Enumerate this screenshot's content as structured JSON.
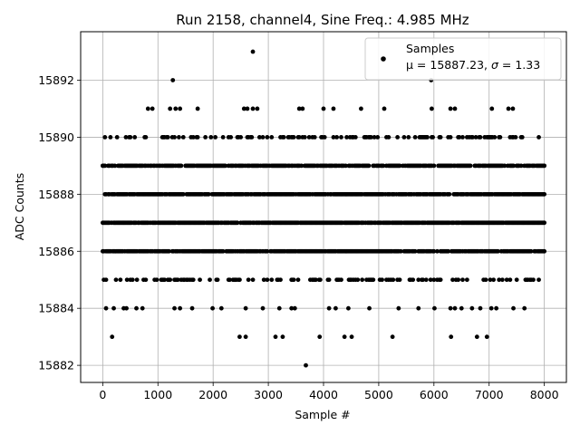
{
  "chart_data": {
    "type": "scatter",
    "title": "Run 2158, channel4, Sine Freq.: 4.985 MHz",
    "xlabel": "Sample #",
    "ylabel": "ADC Counts",
    "xlim": [
      -400,
      8400
    ],
    "ylim": [
      15881.4,
      15893.7
    ],
    "x_ticks": [
      0,
      1000,
      2000,
      3000,
      4000,
      5000,
      6000,
      7000,
      8000
    ],
    "x_tick_labels": [
      "0",
      "1000",
      "2000",
      "3000",
      "4000",
      "5000",
      "6000",
      "7000",
      "8000"
    ],
    "y_ticks": [
      15882,
      15884,
      15886,
      15888,
      15890,
      15892
    ],
    "y_tick_labels": [
      "15882",
      "15884",
      "15886",
      "15888",
      "15890",
      "15892"
    ],
    "grid": true,
    "marker_color": "#000000",
    "legend": {
      "position": "top-right",
      "label_line1": "Samples",
      "label_line2_prefix": "μ = 15887.23, ",
      "label_line2_sigma": "σ",
      "label_line2_suffix": " = 1.33"
    },
    "series": [
      {
        "name": "Samples",
        "dense_levels": [
          15885,
          15886,
          15887,
          15888,
          15889,
          15890
        ],
        "dense_x_range": [
          0,
          8000
        ],
        "sparse_points": {
          "x": [
            2720,
            1270,
            5950,
            820,
            900,
            1220,
            1320,
            1400,
            1720,
            2560,
            2620,
            2720,
            2800,
            3560,
            3620,
            4000,
            4180,
            4680,
            5100,
            5960,
            6300,
            6380,
            7050,
            7350,
            7430,
            60,
            200,
            380,
            430,
            610,
            720,
            1300,
            1400,
            1620,
            1990,
            2150,
            2590,
            2900,
            3200,
            3420,
            3480,
            4100,
            4220,
            4450,
            4830,
            5360,
            5720,
            6010,
            6300,
            6380,
            6500,
            6690,
            6840,
            7040,
            7130,
            7440,
            7640,
            170,
            2480,
            2590,
            3130,
            3260,
            3930,
            4380,
            4510,
            5250,
            6310,
            6780,
            6960,
            3680
          ],
          "y": [
            15893,
            15892,
            15892,
            15891,
            15891,
            15891,
            15891,
            15891,
            15891,
            15891,
            15891,
            15891,
            15891,
            15891,
            15891,
            15891,
            15891,
            15891,
            15891,
            15891,
            15891,
            15891,
            15891,
            15891,
            15891,
            15884,
            15884,
            15884,
            15884,
            15884,
            15884,
            15884,
            15884,
            15884,
            15884,
            15884,
            15884,
            15884,
            15884,
            15884,
            15884,
            15884,
            15884,
            15884,
            15884,
            15884,
            15884,
            15884,
            15884,
            15884,
            15884,
            15884,
            15884,
            15884,
            15884,
            15884,
            15884,
            15883,
            15883,
            15883,
            15883,
            15883,
            15883,
            15883,
            15883,
            15883,
            15883,
            15883,
            15883,
            15882
          ]
        }
      }
    ]
  }
}
